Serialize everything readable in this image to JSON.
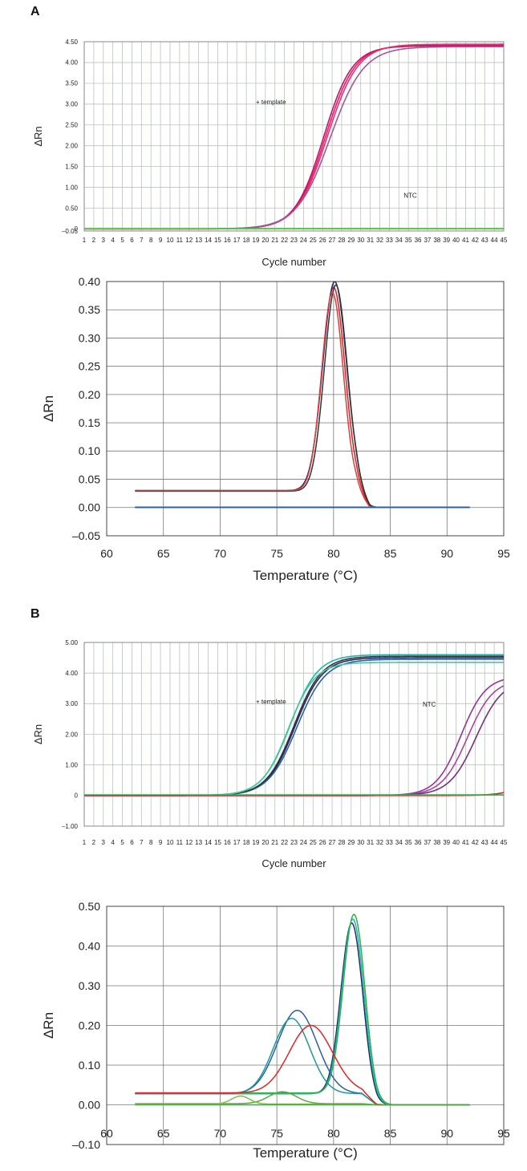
{
  "panels": [
    {
      "label": "A"
    },
    {
      "label": "B"
    }
  ],
  "chart_data": [
    {
      "type": "line",
      "panel": "A",
      "title": "",
      "xlabel": "Cycle number",
      "ylabel": "ΔRn",
      "xlim": [
        1,
        45
      ],
      "ylim": [
        -0.05,
        4.5
      ],
      "x_ticks": [
        1,
        2,
        3,
        4,
        5,
        6,
        7,
        8,
        9,
        10,
        11,
        12,
        13,
        14,
        15,
        16,
        17,
        18,
        19,
        20,
        21,
        22,
        23,
        24,
        25,
        26,
        27,
        28,
        29,
        30,
        31,
        32,
        33,
        34,
        35,
        36,
        37,
        38,
        39,
        40,
        41,
        42,
        43,
        44,
        45
      ],
      "y_ticks": [
        -0.05,
        0,
        0.5,
        1.0,
        1.5,
        2.0,
        2.5,
        3.0,
        3.5,
        4.0,
        4.5
      ],
      "y_tick_labels": [
        "–0.05",
        "0",
        "0.50",
        "1.00",
        "1.50",
        "2.00",
        "2.50",
        "3.00",
        "3.50",
        "4.00",
        "4.50"
      ],
      "grid": true,
      "annotations": [
        {
          "text": "+ template",
          "x": 19,
          "y": 3.0
        },
        {
          "text": "NTC",
          "x": 34.5,
          "y": 0.75
        }
      ],
      "series": [
        {
          "color": "#e8177a",
          "curve": "sigmoid",
          "base": 0,
          "plateau": 4.42,
          "midpoint": 26.3,
          "slope": 1.55
        },
        {
          "color": "#c8105e",
          "curve": "sigmoid",
          "base": 0,
          "plateau": 4.4,
          "midpoint": 26.1,
          "slope": 1.5
        },
        {
          "color": "#e0356b",
          "curve": "sigmoid",
          "base": 0,
          "plateau": 4.44,
          "midpoint": 26.5,
          "slope": 1.6
        },
        {
          "color": "#9a5aa0",
          "curve": "sigmoid",
          "base": 0,
          "plateau": 4.38,
          "midpoint": 26.8,
          "slope": 1.75
        },
        {
          "color": "#2db34a",
          "curve": "flat",
          "value": 0.01
        },
        {
          "color": "#7cc142",
          "curve": "flat",
          "value": 0.0
        }
      ]
    },
    {
      "type": "line",
      "panel": "A",
      "title": "",
      "xlabel": "Temperature (°C)",
      "ylabel": "ΔRn",
      "xlim": [
        60,
        95
      ],
      "ylim": [
        -0.05,
        0.4
      ],
      "x_ticks": [
        60,
        65,
        70,
        75,
        80,
        85,
        90,
        95
      ],
      "y_ticks": [
        -0.05,
        0,
        0.05,
        0.1,
        0.15,
        0.2,
        0.25,
        0.3,
        0.35,
        0.4
      ],
      "y_tick_labels": [
        "–0.05",
        "0.00",
        "0.05",
        "0.10",
        "0.15",
        "0.20",
        "0.25",
        "0.30",
        "0.35",
        "0.40"
      ],
      "grid": true,
      "x_range": [
        62.5,
        92
      ],
      "series": [
        {
          "color": "#d92020",
          "curve": "melt",
          "baseline": 0.03,
          "peak": 0.36,
          "center": 80.0,
          "width": 1.0
        },
        {
          "color": "#1f2a6b",
          "curve": "melt",
          "baseline": 0.03,
          "peak": 0.37,
          "center": 80.1,
          "width": 1.05
        },
        {
          "color": "#333333",
          "curve": "melt",
          "baseline": 0.029,
          "peak": 0.365,
          "center": 80.2,
          "width": 1.0
        },
        {
          "color": "#e33b3b",
          "curve": "melt",
          "baseline": 0.03,
          "peak": 0.35,
          "center": 79.9,
          "width": 0.95
        },
        {
          "color": "#2db34a",
          "curve": "flat",
          "value": 0.001
        },
        {
          "color": "#2a5fa8",
          "curve": "flat",
          "value": 0.0
        }
      ]
    },
    {
      "type": "line",
      "panel": "B",
      "title": "",
      "xlabel": "Cycle number",
      "ylabel": "ΔRn",
      "xlim": [
        1,
        45
      ],
      "ylim": [
        -1.0,
        5.0
      ],
      "x_ticks": [
        1,
        2,
        3,
        4,
        5,
        6,
        7,
        8,
        9,
        10,
        11,
        12,
        13,
        14,
        15,
        16,
        17,
        18,
        19,
        20,
        21,
        22,
        23,
        24,
        25,
        26,
        27,
        28,
        29,
        30,
        31,
        32,
        33,
        34,
        35,
        36,
        37,
        38,
        39,
        40,
        41,
        42,
        43,
        44,
        45
      ],
      "y_ticks": [
        -1.0,
        0,
        1.0,
        2.0,
        3.0,
        4.0,
        5.0
      ],
      "y_tick_labels": [
        "–1.00",
        "0",
        "1.00",
        "2.00",
        "3.00",
        "4.00",
        "5.00"
      ],
      "grid": true,
      "annotations": [
        {
          "text": "+ template",
          "x": 19,
          "y": 3.0
        },
        {
          "text": "NTC",
          "x": 36.5,
          "y": 2.9
        }
      ],
      "series": [
        {
          "color": "#1fb5b0",
          "curve": "sigmoid",
          "base": 0,
          "plateau": 4.6,
          "midpoint": 22.6,
          "slope": 1.45
        },
        {
          "color": "#1f2a6b",
          "curve": "sigmoid",
          "base": 0,
          "plateau": 4.5,
          "midpoint": 23.1,
          "slope": 1.45
        },
        {
          "color": "#2a5fa8",
          "curve": "sigmoid",
          "base": 0,
          "plateau": 4.45,
          "midpoint": 23.3,
          "slope": 1.5
        },
        {
          "color": "#333333",
          "curve": "sigmoid",
          "base": 0,
          "plateau": 4.55,
          "midpoint": 23.0,
          "slope": 1.45
        },
        {
          "color": "#48c79a",
          "curve": "sigmoid",
          "base": 0,
          "plateau": 4.35,
          "midpoint": 22.4,
          "slope": 1.4
        },
        {
          "color": "#9b2fa0",
          "curve": "sigmoid",
          "base": 0,
          "plateau": 3.9,
          "midpoint": 40.5,
          "slope": 1.3
        },
        {
          "color": "#b040a8",
          "curve": "sigmoid",
          "base": 0,
          "plateau": 3.8,
          "midpoint": 41.2,
          "slope": 1.35
        },
        {
          "color": "#7a2a8a",
          "curve": "sigmoid",
          "base": 0,
          "plateau": 3.8,
          "midpoint": 42.1,
          "slope": 1.4
        },
        {
          "color": "#d92020",
          "curve": "sigmoid",
          "base": 0,
          "plateau": 3.5,
          "midpoint": 50.0,
          "slope": 1.4
        },
        {
          "color": "#2db34a",
          "curve": "flat",
          "value": 0.02
        }
      ]
    },
    {
      "type": "line",
      "panel": "B",
      "title": "",
      "xlabel": "Temperature (°C)",
      "ylabel": "ΔRn",
      "xlim": [
        60,
        95
      ],
      "ylim": [
        -0.1,
        0.5
      ],
      "x_ticks": [
        60,
        65,
        70,
        75,
        80,
        85,
        90,
        95
      ],
      "y_ticks": [
        -0.1,
        0,
        0.1,
        0.2,
        0.3,
        0.4,
        0.5
      ],
      "y_tick_labels": [
        "–0.10",
        "0.00",
        "0.10",
        "0.20",
        "0.30",
        "0.40",
        "0.50"
      ],
      "grid": true,
      "x_range": [
        62.5,
        92
      ],
      "series": [
        {
          "color": "#1f2a6b",
          "curve": "melt2",
          "baseline": 0.028,
          "peak": 0.43,
          "center": 81.6,
          "width": 0.95,
          "peak2": 0.0,
          "center2": 76.5,
          "width2": 1.6
        },
        {
          "color": "#1fb5b0",
          "curve": "melt2",
          "baseline": 0.028,
          "peak": 0.44,
          "center": 81.7,
          "width": 0.95,
          "peak2": 0.0,
          "center2": 76.5,
          "width2": 1.6
        },
        {
          "color": "#2db34a",
          "curve": "melt2",
          "baseline": 0.03,
          "peak": 0.45,
          "center": 81.8,
          "width": 0.95,
          "peak2": 0.0,
          "center2": 76.5,
          "width2": 1.6
        },
        {
          "color": "#2a5fa8",
          "curve": "melt2",
          "baseline": 0.028,
          "peak": 0.0,
          "center": 81.0,
          "width": 1.0,
          "peak2": 0.21,
          "center2": 76.8,
          "width2": 1.75
        },
        {
          "color": "#1a9a9a",
          "curve": "melt2",
          "baseline": 0.028,
          "peak": 0.0,
          "center": 81.0,
          "width": 1.0,
          "peak2": 0.19,
          "center2": 76.3,
          "width2": 1.6
        },
        {
          "color": "#e32424",
          "curve": "melt2",
          "baseline": 0.03,
          "peak": 0.0,
          "center": 81.0,
          "width": 1.0,
          "peak2": 0.17,
          "center2": 78.0,
          "width2": 1.9
        },
        {
          "color": "#5fa83a",
          "curve": "melt2",
          "baseline": 0.003,
          "peak": 0.0,
          "center": 81.0,
          "width": 1.0,
          "peak2": 0.03,
          "center2": 75.5,
          "width2": 1.2
        },
        {
          "color": "#7cc142",
          "curve": "melt2",
          "baseline": 0.002,
          "peak": 0.0,
          "center": 81.0,
          "width": 1.0,
          "peak2": 0.02,
          "center2": 71.8,
          "width2": 0.8
        },
        {
          "color": "#2db34a",
          "curve": "flat",
          "value": 0.0
        }
      ]
    }
  ]
}
